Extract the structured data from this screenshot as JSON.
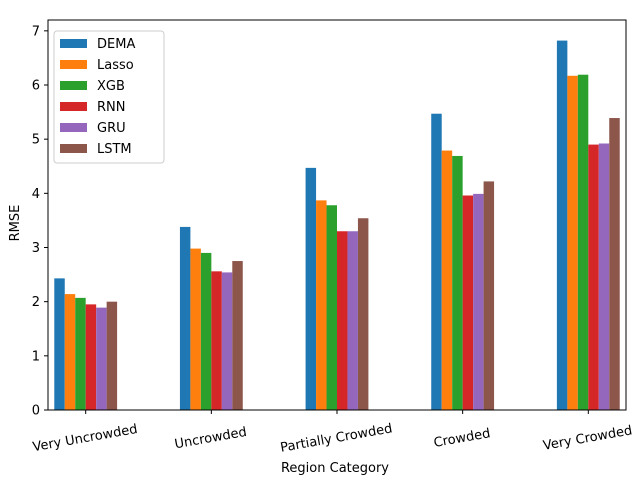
{
  "chart_data": {
    "type": "bar",
    "title": "",
    "xlabel": "Region Category",
    "ylabel": "RMSE",
    "ylim": [
      0,
      7.2
    ],
    "yticks": [
      0,
      1,
      2,
      3,
      4,
      5,
      6,
      7
    ],
    "categories": [
      "Very Uncrowded",
      "Uncrowded",
      "Partially Crowded",
      "Crowded",
      "Very Crowded"
    ],
    "series": [
      {
        "name": "DEMA",
        "color": "#1f77b4",
        "values": [
          2.43,
          3.38,
          4.47,
          5.47,
          6.82
        ]
      },
      {
        "name": "Lasso",
        "color": "#ff7f0e",
        "values": [
          2.14,
          2.98,
          3.87,
          4.79,
          6.17
        ]
      },
      {
        "name": "XGB",
        "color": "#2ca02c",
        "values": [
          2.07,
          2.9,
          3.78,
          4.69,
          6.19
        ]
      },
      {
        "name": "RNN",
        "color": "#d62728",
        "values": [
          1.95,
          2.56,
          3.3,
          3.96,
          4.9
        ]
      },
      {
        "name": "GRU",
        "color": "#9467bd",
        "values": [
          1.89,
          2.54,
          3.3,
          3.99,
          4.92
        ]
      },
      {
        "name": "LSTM",
        "color": "#8c564b",
        "values": [
          2.0,
          2.75,
          3.54,
          4.22,
          5.39
        ]
      }
    ],
    "legend_position": "top-left",
    "grid": false
  }
}
